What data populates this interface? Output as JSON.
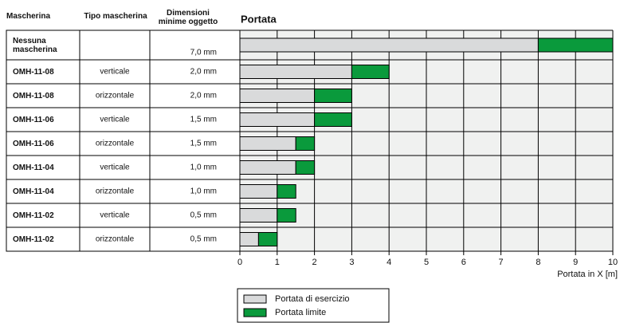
{
  "chart_data": {
    "type": "bar",
    "orientation": "horizontal",
    "stacked": true,
    "title": "Portata",
    "columns": [
      "Mascherina",
      "Tipo mascherina",
      "Dimensioni minime oggetto"
    ],
    "categories": [
      "Nessuna mascherina",
      "OMH-11-08",
      "OMH-11-08",
      "OMH-11-06",
      "OMH-11-06",
      "OMH-11-04",
      "OMH-11-04",
      "OMH-11-02",
      "OMH-11-02"
    ],
    "tipo": [
      null,
      "verticale",
      "orizzontale",
      "verticale",
      "orizzontale",
      "verticale",
      "orizzontale",
      "verticale",
      "orizzontale"
    ],
    "dimensioni": [
      "7,0 mm",
      "2,0 mm",
      "2,0 mm",
      "1,5 mm",
      "1,5 mm",
      "1,0 mm",
      "1,0 mm",
      "0,5 mm",
      "0,5 mm"
    ],
    "series": [
      {
        "name": "Portata di esercizio",
        "color": "#d9dadb",
        "values": [
          8,
          3,
          2,
          2,
          1.5,
          1.5,
          1,
          1,
          0.5
        ]
      },
      {
        "name": "Portata limite",
        "color": "#0a9a3c",
        "values": [
          2,
          1,
          1,
          1,
          0.5,
          0.5,
          0.5,
          0.5,
          0.5
        ]
      }
    ],
    "xlim": [
      0,
      10
    ],
    "xticks": [
      0,
      1,
      2,
      3,
      4,
      5,
      6,
      7,
      8,
      9,
      10
    ],
    "xlabel": "Portata in X [m]",
    "grid": true,
    "plot_background": "#f0f1f0"
  }
}
